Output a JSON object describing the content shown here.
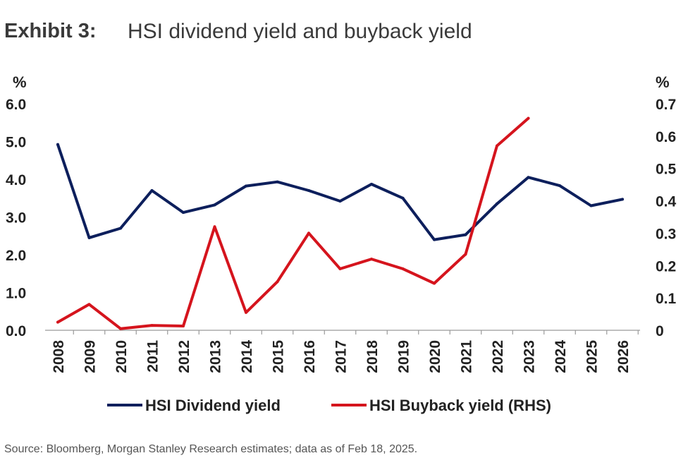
{
  "header": {
    "exhibit": "Exhibit 3:",
    "title": "HSI dividend yield and buyback yield"
  },
  "footer": {
    "source": "Source: Bloomberg, Morgan Stanley Research estimates; data as of Feb 18, 2025."
  },
  "chart_data": {
    "type": "line",
    "categories": [
      "2008",
      "2009",
      "2010",
      "2011",
      "2012",
      "2013",
      "2014",
      "2015",
      "2016",
      "2017",
      "2018",
      "2019",
      "2020",
      "2021",
      "2022",
      "2023",
      "2024",
      "2025",
      "2026"
    ],
    "left_axis": {
      "unit": "%",
      "ylim": [
        0,
        6
      ],
      "ticks": [
        "0.0",
        "1.0",
        "2.0",
        "3.0",
        "4.0",
        "5.0",
        "6.0"
      ]
    },
    "right_axis": {
      "unit": "%",
      "ylim": [
        0,
        0.7
      ],
      "ticks": [
        "0",
        "0.1",
        "0.2",
        "0.3",
        "0.4",
        "0.5",
        "0.6",
        "0.7"
      ]
    },
    "series": [
      {
        "name": "HSI Dividend yield",
        "axis": "left",
        "color": "#0d1f5c",
        "values": [
          4.92,
          2.45,
          2.7,
          3.7,
          3.12,
          3.32,
          3.82,
          3.93,
          3.7,
          3.42,
          3.87,
          3.5,
          2.4,
          2.53,
          3.35,
          4.05,
          3.83,
          3.3,
          3.47
        ]
      },
      {
        "name": "HSI Buyback yield (RHS)",
        "axis": "right",
        "color": "#d5141d",
        "values": [
          0.025,
          0.08,
          0.005,
          0.015,
          0.013,
          0.32,
          0.055,
          0.15,
          0.3,
          0.19,
          0.22,
          0.19,
          0.145,
          0.235,
          0.57,
          0.655,
          null,
          null,
          null
        ]
      }
    ],
    "grid": false,
    "legend": "bottom"
  }
}
